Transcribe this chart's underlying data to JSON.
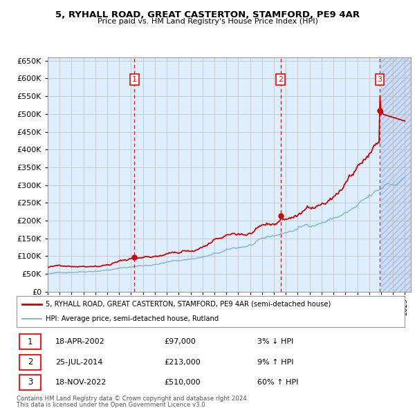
{
  "title": "5, RYHALL ROAD, GREAT CASTERTON, STAMFORD, PE9 4AR",
  "subtitle": "Price paid vs. HM Land Registry's House Price Index (HPI)",
  "legend_line1": "5, RYHALL ROAD, GREAT CASTERTON, STAMFORD, PE9 4AR (semi-detached house)",
  "legend_line2": "HPI: Average price, semi-detached house, Rutland",
  "transactions": [
    {
      "num": 1,
      "date": "18-APR-2002",
      "price": 97000,
      "pct": "3%",
      "dir": "↓"
    },
    {
      "num": 2,
      "date": "25-JUL-2014",
      "price": 213000,
      "pct": "9%",
      "dir": "↑"
    },
    {
      "num": 3,
      "date": "18-NOV-2022",
      "price": 510000,
      "pct": "60%",
      "dir": "↑"
    }
  ],
  "transaction_years": [
    2002.29,
    2014.56,
    2022.88
  ],
  "transaction_prices": [
    97000,
    213000,
    510000
  ],
  "footnote1": "Contains HM Land Registry data © Crown copyright and database right 2024.",
  "footnote2": "This data is licensed under the Open Government Licence v3.0.",
  "hpi_color": "#7bafd4",
  "sale_color": "#cc0000",
  "bg_color": "#ddeeff",
  "future_bg_color": "#ddeeff",
  "grid_color": "#bbbbbb",
  "ylim": [
    0,
    660000
  ],
  "xlim_start": 1995.0,
  "xlim_end": 2025.5,
  "future_start": 2023.08
}
